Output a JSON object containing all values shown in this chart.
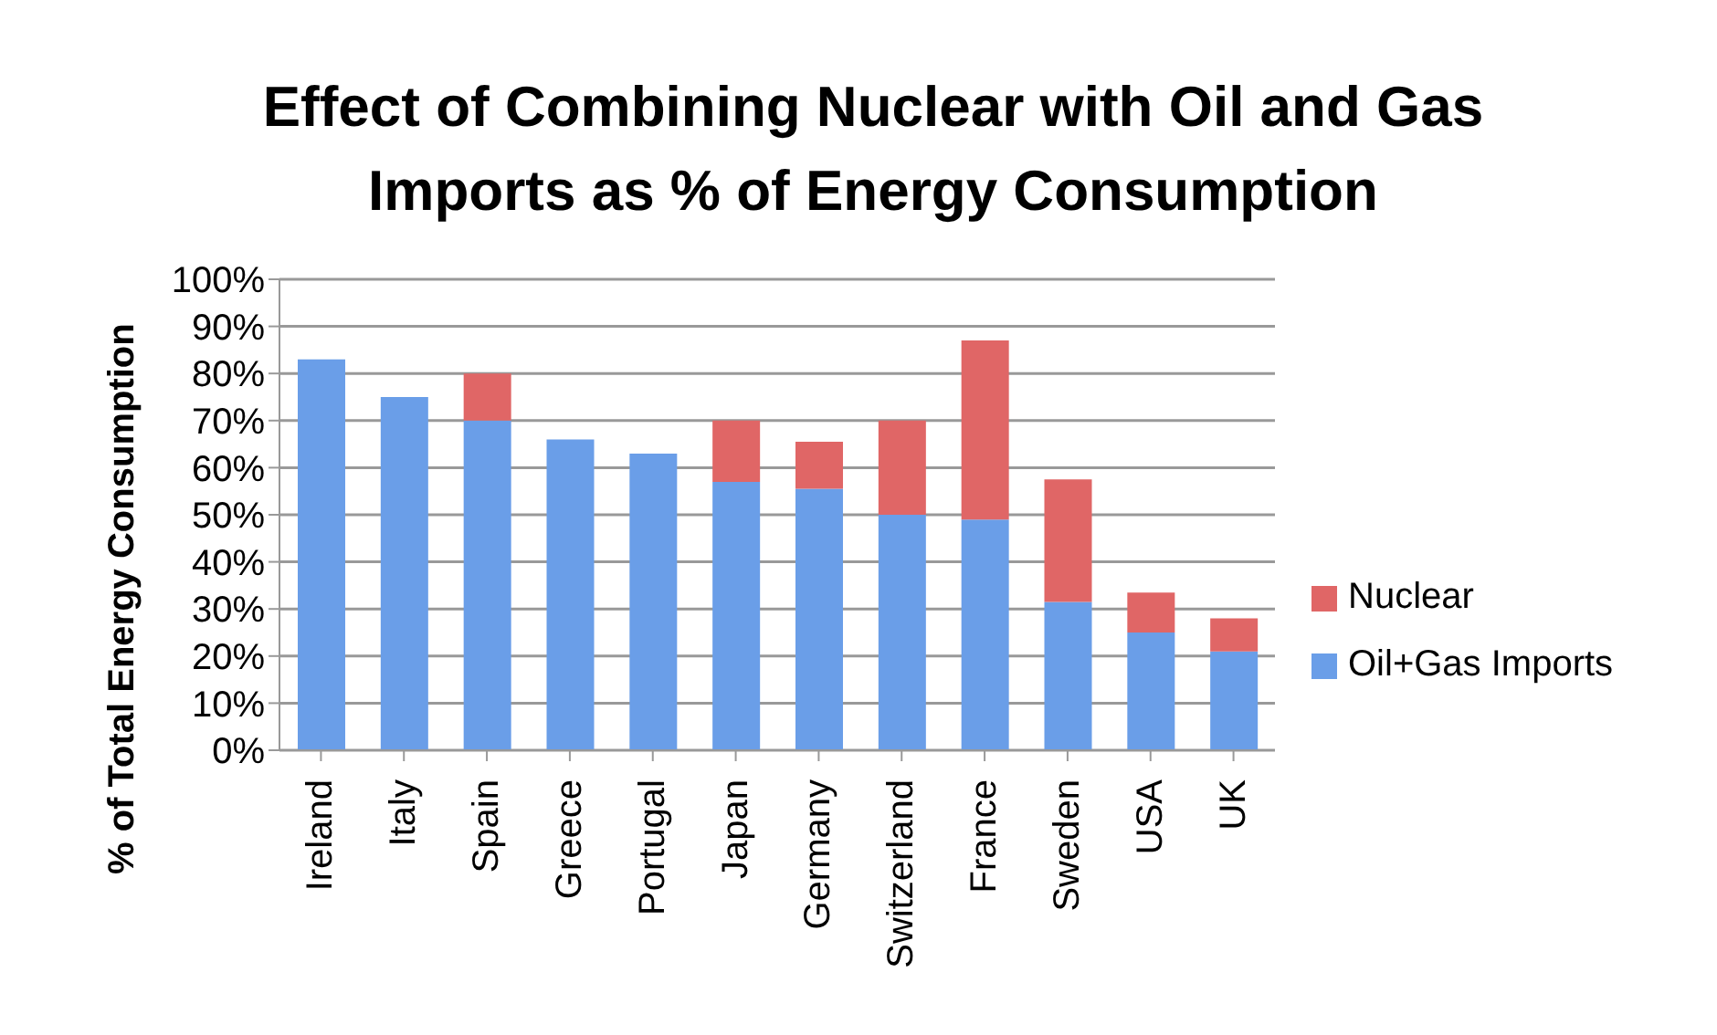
{
  "chart_data": {
    "type": "bar",
    "title": "Effect of Combining Nuclear with Oil and Gas Imports as % of Energy Consumption",
    "ylabel": "% of Total Energy Consumption",
    "categories": [
      "Ireland",
      "Italy",
      "Spain",
      "Greece",
      "Portugal",
      "Japan",
      "Germany",
      "Switzerland",
      "France",
      "Sweden",
      "USA",
      "UK"
    ],
    "stacked": true,
    "series": [
      {
        "name": "Oil+Gas Imports",
        "color": "#6a9ee8",
        "values": [
          83,
          75,
          70,
          66,
          63,
          57,
          55.5,
          50,
          49,
          31.5,
          25,
          21
        ]
      },
      {
        "name": "Nuclear",
        "color": "#e06666",
        "values": [
          0,
          0,
          10,
          0,
          0,
          13,
          10,
          20,
          38,
          26,
          8.5,
          7
        ]
      }
    ],
    "ylim": [
      0,
      100
    ],
    "yticks": [
      {
        "value": 0,
        "label": "0%"
      },
      {
        "value": 10,
        "label": "10%"
      },
      {
        "value": 20,
        "label": "20%"
      },
      {
        "value": 30,
        "label": "30%"
      },
      {
        "value": 40,
        "label": "40%"
      },
      {
        "value": 50,
        "label": "50%"
      },
      {
        "value": 60,
        "label": "60%"
      },
      {
        "value": 70,
        "label": "70%"
      },
      {
        "value": 80,
        "label": "80%"
      },
      {
        "value": 90,
        "label": "90%"
      },
      {
        "value": 100,
        "label": "100%"
      }
    ],
    "grid": "y",
    "legend": "right"
  }
}
